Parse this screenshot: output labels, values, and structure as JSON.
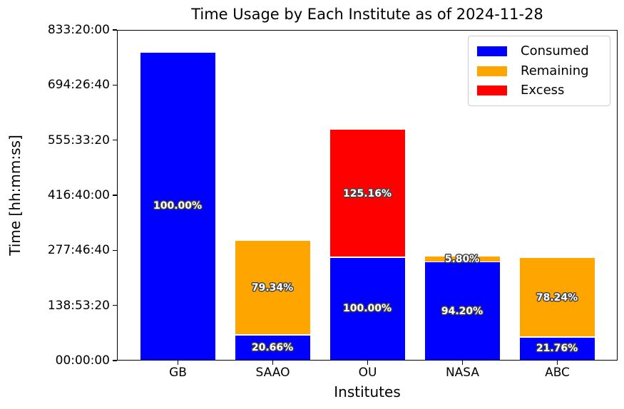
{
  "chart_data": {
    "type": "bar",
    "stacked": true,
    "title": "Time Usage by Each Institute as of 2024-11-28",
    "xlabel": "Institutes",
    "ylabel": "Time [hh:mm:ss]",
    "categories": [
      "GB",
      "SAAO",
      "OU",
      "NASA",
      "ABC"
    ],
    "y_axis": {
      "ymin_seconds": 0,
      "ymax_seconds": 3000000,
      "tick_labels": [
        "00:00:00",
        "138:53:20",
        "277:46:40",
        "416:40:00",
        "555:33:20",
        "694:26:40",
        "833:20:00"
      ],
      "tick_seconds": [
        0,
        500000,
        1000000,
        1500000,
        2000000,
        2500000,
        3000000
      ]
    },
    "grid": false,
    "legend": {
      "position": "upper right",
      "items": [
        {
          "label": "Consumed",
          "color": "#0000ff"
        },
        {
          "label": "Remaining",
          "color": "#ffa500"
        },
        {
          "label": "Excess",
          "color": "#ff0000"
        }
      ]
    },
    "bars": [
      {
        "category": "GB",
        "segments": [
          {
            "series": "Consumed",
            "color": "#0000ff",
            "approx_seconds": 2800000,
            "label": "100.00%"
          }
        ]
      },
      {
        "category": "SAAO",
        "segments": [
          {
            "series": "Consumed",
            "color": "#0000ff",
            "approx_seconds": 224000,
            "label": "20.66%"
          },
          {
            "series": "Remaining",
            "color": "#ffa500",
            "approx_seconds": 862000,
            "label": "79.34%"
          }
        ]
      },
      {
        "category": "OU",
        "segments": [
          {
            "series": "Consumed",
            "color": "#0000ff",
            "approx_seconds": 931000,
            "label": "100.00%"
          },
          {
            "series": "Excess",
            "color": "#ff0000",
            "approx_seconds": 1165000,
            "label": "125.16%"
          }
        ]
      },
      {
        "category": "NASA",
        "segments": [
          {
            "series": "Consumed",
            "color": "#0000ff",
            "approx_seconds": 889000,
            "label": "94.20%"
          },
          {
            "series": "Remaining",
            "color": "#ffa500",
            "approx_seconds": 55000,
            "label": "5.80%"
          }
        ]
      },
      {
        "category": "ABC",
        "segments": [
          {
            "series": "Consumed",
            "color": "#0000ff",
            "approx_seconds": 203000,
            "label": "21.76%"
          },
          {
            "series": "Remaining",
            "color": "#ffa500",
            "approx_seconds": 728000,
            "label": "78.24%"
          }
        ]
      }
    ],
    "colors": {
      "consumed": "#0000ff",
      "remaining": "#ffa500",
      "excess": "#ff0000",
      "background": "#ffffff",
      "text": "#000000"
    }
  }
}
